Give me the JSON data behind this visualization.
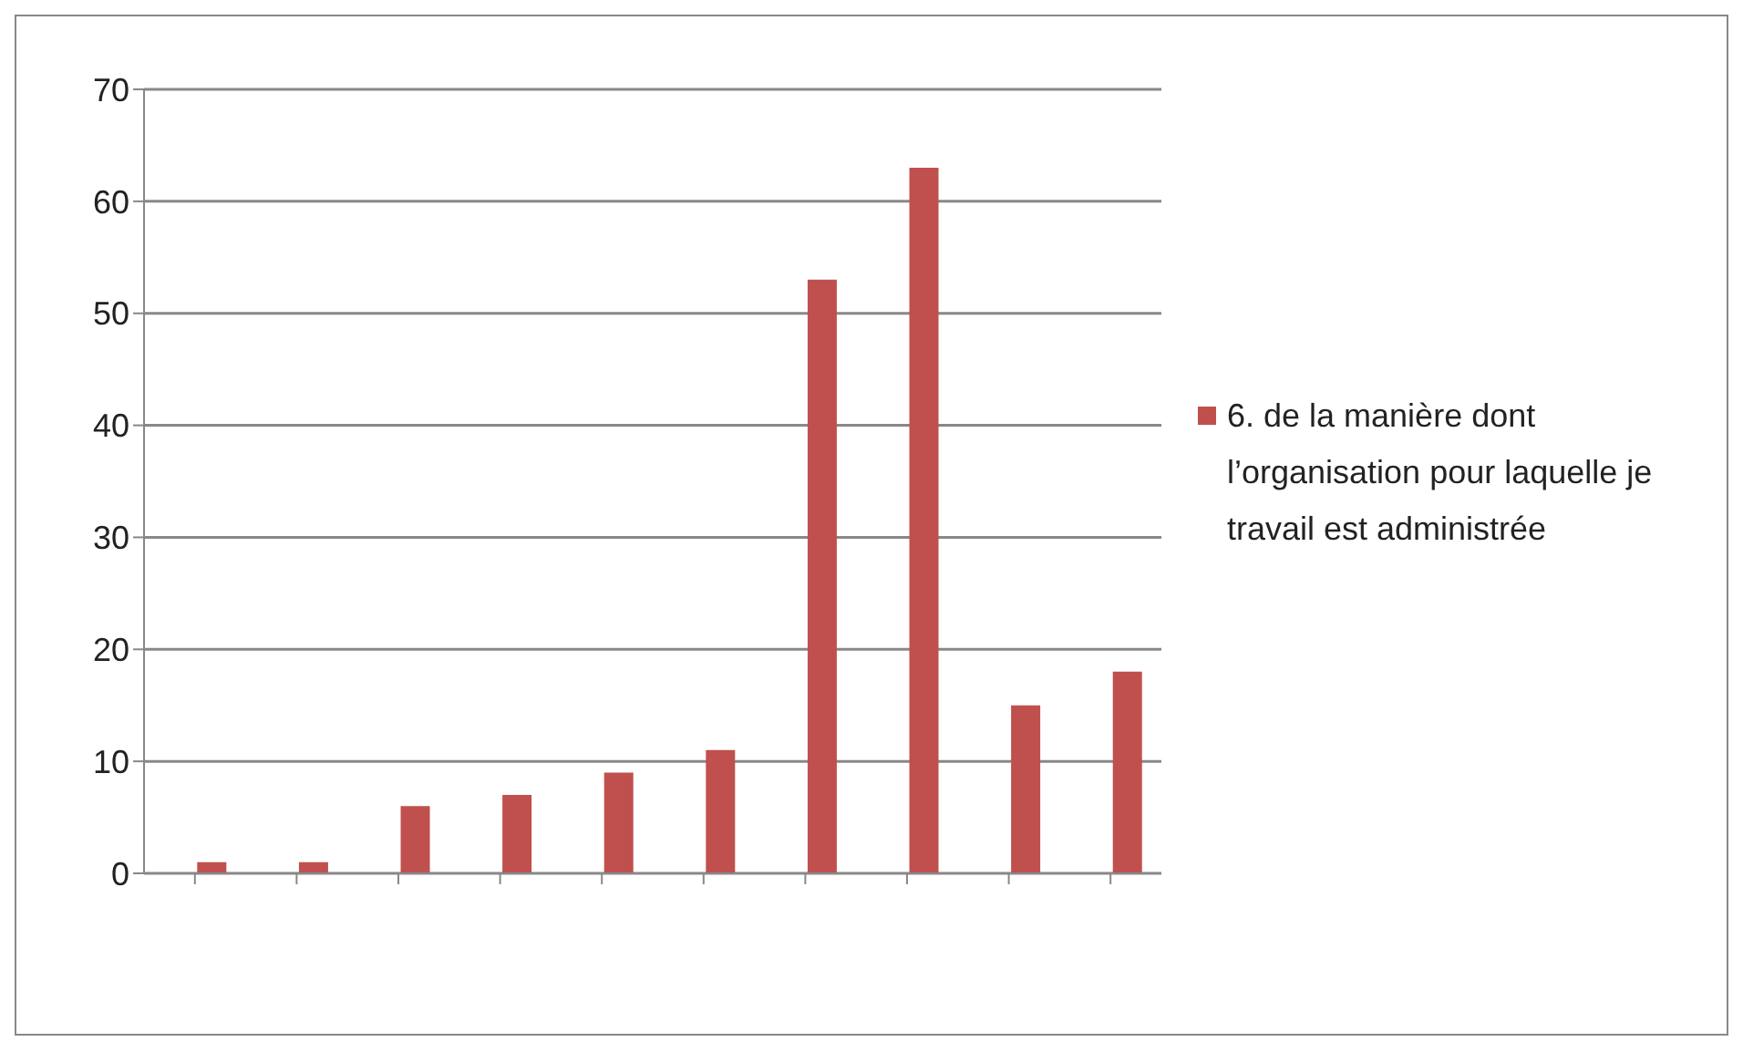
{
  "chart_data": {
    "type": "bar",
    "categories": [
      null,
      null,
      null,
      null,
      null,
      null,
      null,
      null,
      null,
      null
    ],
    "series": [
      {
        "color": "#4f81bd",
        "values": [
          0,
          0,
          0,
          0,
          0,
          0,
          0,
          0,
          0,
          0
        ]
      },
      {
        "name": "6. de la manière dont l’organisation pour laquelle je travail est administrée",
        "color": "#c0504d",
        "values": [
          1,
          1,
          6,
          7,
          9,
          11,
          53,
          63,
          15,
          18
        ]
      }
    ],
    "ylim": [
      0,
      70
    ],
    "yticks": [
      0,
      10,
      20,
      30,
      40,
      50,
      60,
      70
    ],
    "grid": "y",
    "legend": "right"
  }
}
